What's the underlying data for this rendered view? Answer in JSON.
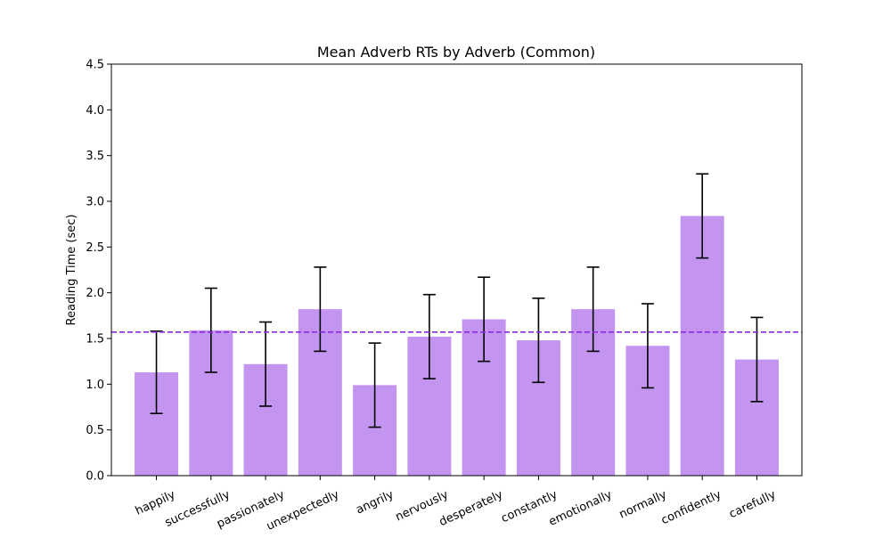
{
  "chart_data": {
    "type": "bar",
    "title": "Mean Adverb RTs by Adverb (Common)",
    "xlabel": "",
    "ylabel": "Reading Time (sec)",
    "ylim": [
      0,
      4.5
    ],
    "yticks": [
      0.0,
      0.5,
      1.0,
      1.5,
      2.0,
      2.5,
      3.0,
      3.5,
      4.0,
      4.5
    ],
    "ytick_labels": [
      "0.0",
      "0.5",
      "1.0",
      "1.5",
      "2.0",
      "2.5",
      "3.0",
      "3.5",
      "4.0",
      "4.5"
    ],
    "categories": [
      "happily",
      "successfully",
      "passionately",
      "unexpectedly",
      "angrily",
      "nervously",
      "desperately",
      "constantly",
      "emotionally",
      "normally",
      "confidently",
      "carefully"
    ],
    "values": [
      1.13,
      1.59,
      1.22,
      1.82,
      0.99,
      1.52,
      1.71,
      1.48,
      1.82,
      1.42,
      2.84,
      1.27
    ],
    "errors": [
      0.45,
      0.46,
      0.46,
      0.46,
      0.46,
      0.46,
      0.46,
      0.46,
      0.46,
      0.46,
      0.46,
      0.46
    ],
    "mean_line": 1.57,
    "grid": false,
    "legend": "none",
    "colors": {
      "bar": "#c495f0",
      "errorbar": "#000000",
      "mean_line": "#8a2be2",
      "axis": "#000000"
    }
  }
}
